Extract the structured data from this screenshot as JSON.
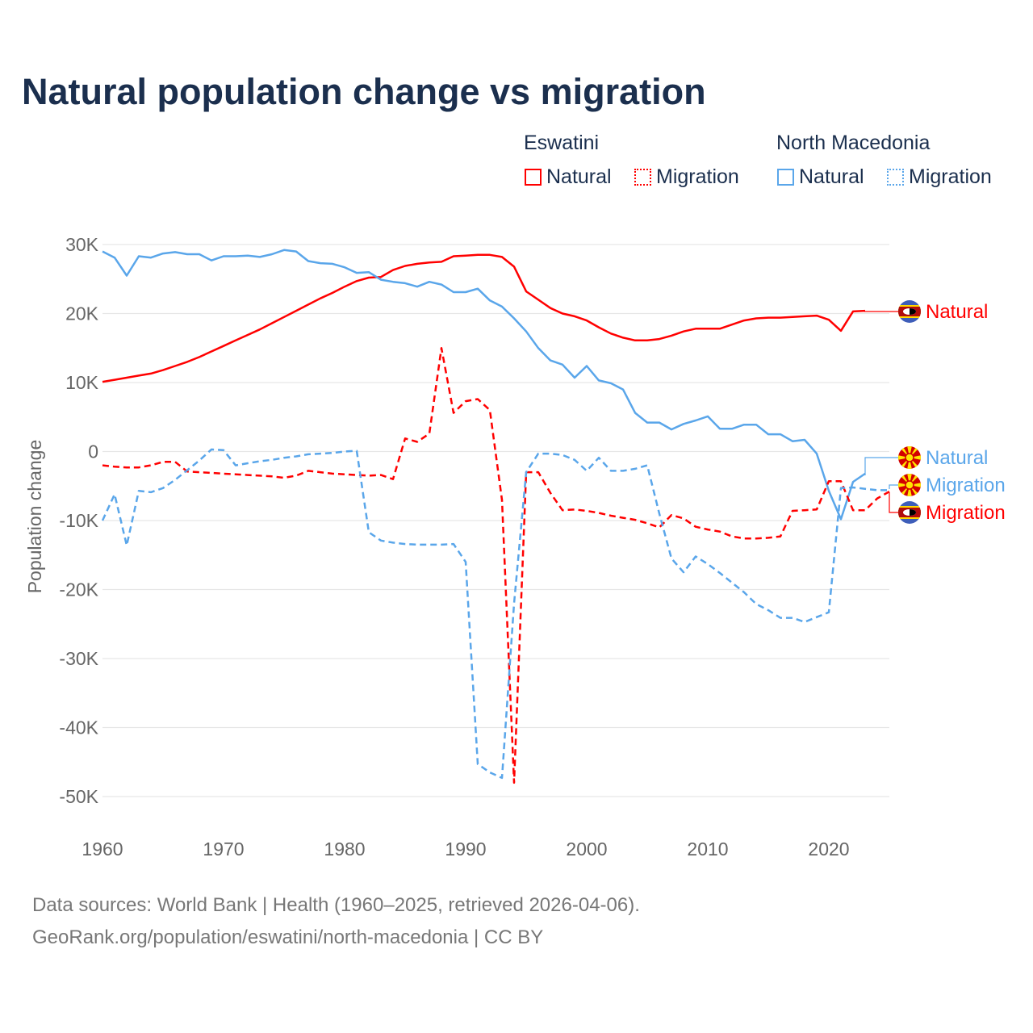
{
  "footer": {
    "line1": "Data sources: World Bank | Health (1960–2025, retrieved 2026-04-06).",
    "line2": "GeoRank.org/population/eswatini/north-macedonia | CC BY"
  },
  "legend": {
    "groups": [
      {
        "title": "Eswatini",
        "items": [
          "Natural",
          "Migration"
        ],
        "color": "#ff0000"
      },
      {
        "title": "North Macedonia",
        "items": [
          "Natural",
          "Migration"
        ],
        "color": "#5aa6ea"
      }
    ]
  },
  "colors": {
    "eswatini": "#ff0000",
    "north_macedonia": "#5aa6ea"
  },
  "end_labels": {
    "eswatini_natural": "Natural",
    "nm_natural": "Natural",
    "nm_migration": "Migration",
    "eswatini_migration": "Migration"
  },
  "chart_data": {
    "type": "line",
    "title": "Natural population change vs migration",
    "xlabel": "",
    "ylabel": "Population change",
    "xlim": [
      1960,
      2025
    ],
    "ylim": [
      -50000,
      30000
    ],
    "x_ticks": [
      1960,
      1970,
      1980,
      1990,
      2000,
      2010,
      2020
    ],
    "x_tick_labels": [
      "1960",
      "1970",
      "1980",
      "1990",
      "2000",
      "2010",
      "2020"
    ],
    "y_ticks": [
      30000,
      20000,
      10000,
      0,
      -10000,
      -20000,
      -30000,
      -40000,
      -50000
    ],
    "y_tick_labels": [
      "30K",
      "20K",
      "10K",
      "0",
      "-10K",
      "-20K",
      "-30K",
      "-40K",
      "-50K"
    ],
    "grid": true,
    "legend_position": "top-right",
    "x_start": 1960,
    "series": [
      {
        "name": "Eswatini Natural",
        "country": "Eswatini",
        "kind": "Natural",
        "color": "#ff0000",
        "dash": "solid",
        "values": [
          10100,
          10400,
          10700,
          11000,
          11300,
          11800,
          12400,
          13000,
          13700,
          14500,
          15300,
          16100,
          16900,
          17700,
          18600,
          19500,
          20400,
          21300,
          22200,
          23000,
          23900,
          24700,
          25200,
          25300,
          26300,
          26900,
          27200,
          27400,
          27500,
          28300,
          28400,
          28500,
          28500,
          28200,
          26800,
          23200,
          22000,
          20800,
          20000,
          19600,
          19000,
          18000,
          17100,
          16500,
          16100,
          16100,
          16300,
          16800,
          17400,
          17800,
          17800,
          17800,
          18400,
          19000,
          19300,
          19400,
          19400,
          19500,
          19600,
          19700,
          19100,
          17500,
          20300,
          20400
        ]
      },
      {
        "name": "North Macedonia Natural",
        "country": "North Macedonia",
        "kind": "Natural",
        "color": "#5aa6ea",
        "dash": "solid",
        "values": [
          29000,
          28100,
          25500,
          28300,
          28100,
          28700,
          28900,
          28600,
          28600,
          27700,
          28300,
          28300,
          28400,
          28200,
          28600,
          29200,
          29000,
          27600,
          27300,
          27200,
          26700,
          25900,
          26000,
          24900,
          24600,
          24400,
          23900,
          24600,
          24200,
          23100,
          23100,
          23600,
          21900,
          21000,
          19300,
          17400,
          15000,
          13200,
          12600,
          10700,
          12400,
          10300,
          9900,
          9000,
          5600,
          4200,
          4200,
          3200,
          4000,
          4500,
          5100,
          3300,
          3300,
          3900,
          3900,
          2500,
          2500,
          1500,
          1700,
          -300,
          -5700,
          -9800,
          -4400,
          -3200
        ]
      },
      {
        "name": "Eswatini Migration",
        "country": "Eswatini",
        "kind": "Migration",
        "color": "#ff0000",
        "dash": "dashed",
        "values": [
          -2000,
          -2200,
          -2300,
          -2300,
          -2000,
          -1500,
          -1500,
          -2900,
          -3000,
          -3100,
          -3200,
          -3300,
          -3400,
          -3500,
          -3600,
          -3800,
          -3500,
          -2800,
          -3000,
          -3200,
          -3300,
          -3400,
          -3500,
          -3400,
          -4000,
          1900,
          1400,
          2600,
          15000,
          5600,
          7300,
          7600,
          6000,
          -7000,
          -48000,
          -3000,
          -3000,
          -6000,
          -8500,
          -8400,
          -8600,
          -8900,
          -9300,
          -9600,
          -9900,
          -10400,
          -11000,
          -9200,
          -9700,
          -10900,
          -11300,
          -11600,
          -12300,
          -12600,
          -12600,
          -12500,
          -12300,
          -8600,
          -8500,
          -8400,
          -4300,
          -4300,
          -8500,
          -8500,
          -6800,
          -5800
        ]
      },
      {
        "name": "North Macedonia Migration",
        "country": "North Macedonia",
        "kind": "Migration",
        "color": "#5aa6ea",
        "dash": "dashed",
        "values": [
          -10000,
          -6200,
          -13600,
          -5700,
          -5900,
          -5300,
          -4100,
          -2700,
          -1300,
          300,
          200,
          -2000,
          -1700,
          -1400,
          -1200,
          -900,
          -700,
          -400,
          -300,
          -200,
          0,
          100,
          -11700,
          -12900,
          -13200,
          -13400,
          -13500,
          -13500,
          -13500,
          -13400,
          -16000,
          -45300,
          -46500,
          -47300,
          -22000,
          -3000,
          -300,
          -300,
          -500,
          -1200,
          -2800,
          -900,
          -2800,
          -2800,
          -2500,
          -2000,
          -9000,
          -15500,
          -17500,
          -15200,
          -16300,
          -17600,
          -19000,
          -20400,
          -22100,
          -23000,
          -24100,
          -24100,
          -24700,
          -24000,
          -23300,
          -5300,
          -5200,
          -5400,
          -5600,
          -5600
        ]
      }
    ]
  }
}
